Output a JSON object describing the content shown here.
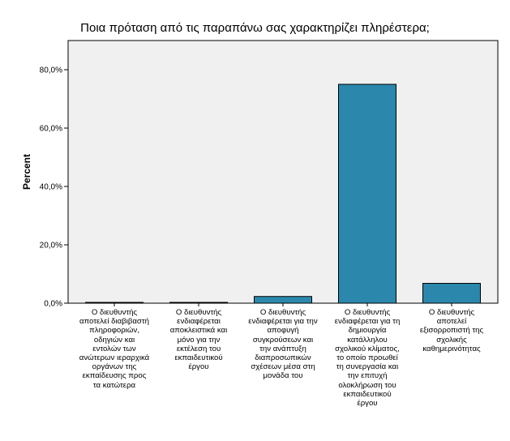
{
  "chart_data": {
    "type": "bar",
    "title": "Ποια πρόταση από τις παραπάνω σας χαρακτηρίζει πληρέστερα;",
    "xlabel": "",
    "ylabel": "Percent",
    "ylim": [
      0,
      90
    ],
    "yticks": [
      "0,0%",
      "20,0%",
      "40,0%",
      "60,0%",
      "80,0%"
    ],
    "grid": false,
    "bar_color": "#2b88ac",
    "plot_background": "#f0f0f0",
    "categories": [
      "Ο διευθυντής αποτελεί διαβιβαστή πληροφοριών, οδηγιών και εντολών των ανώτερων ιεραρχικά οργάνων της εκπαίδευσης προς τα κατώτερα",
      "Ο διευθυντής ενδιαφέρεται αποκλειστικά και μόνο για την εκτέλεση του εκπαιδευτικού έργου",
      "Ο διευθυντής ενδιαφέρεται για την αποφυγή συγκρούσεων και την ανάπτυξη διαπροσωπικών σχέσεων μέσα στη μονάδα του",
      "Ο διευθυντής ενδιαφέρεται για τη δημιουργία κατάλληλου σχολικού κλίματος, το οποίο προωθεί τη συνεργασία και την επιτυχή ολοκλήρωση του εκπαιδευτικού έργου",
      "Ο διευθυντής αποτελεί εξισορροπιστή της σχολικής καθημερινότητας"
    ],
    "category_lines": [
      [
        "Ο διευθυντής",
        "αποτελεί διαβιβαστή",
        "πληροφοριών,",
        "οδηγιών και",
        "εντολών των",
        "ανώτερων ιεραρχικά",
        "οργάνων της",
        "εκπαίδευσης προς",
        "τα κατώτερα"
      ],
      [
        "Ο διευθυντής",
        "ενδιαφέρεται",
        "αποκλειστικά και",
        "μόνο για την",
        "εκτέλεση του",
        "εκπαιδευτικού",
        "έργου"
      ],
      [
        "Ο διευθυντής",
        "ενδιαφέρεται για την",
        "αποφυγή",
        "συγκρούσεων και",
        "την ανάπτυξη",
        "διαπροσωπικών",
        "σχέσεων μέσα στη",
        "μονάδα του"
      ],
      [
        "Ο διευθυντής",
        "ενδιαφέρεται για τη",
        "δημιουργία",
        "κατάλληλου",
        "σχολικού κλίματος,",
        "το οποίο προωθεί",
        "τη συνεργασία και",
        "την επιτυχή",
        "ολοκλήρωση του",
        "εκπαιδευτικού",
        "έργου"
      ],
      [
        "Ο διευθυντής",
        "αποτελεί",
        "εξισορροπιστή της",
        "σχολικής",
        "καθημερινότητας"
      ]
    ],
    "values": [
      0.0,
      0.0,
      2.3,
      75.0,
      6.8
    ]
  }
}
